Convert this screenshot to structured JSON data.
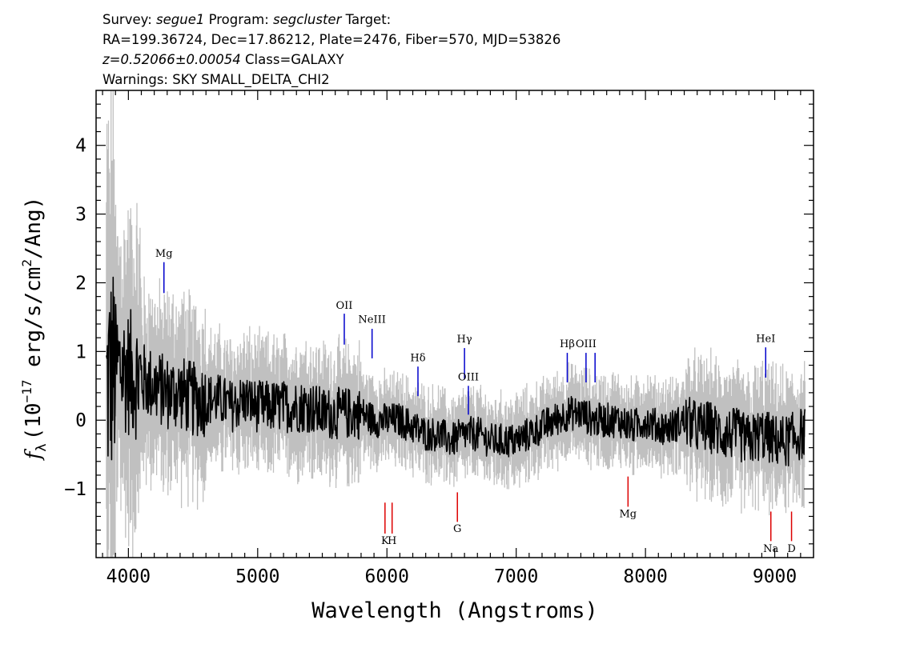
{
  "header": {
    "survey_label": "Survey:",
    "survey_value": "segue1",
    "program_label": "Program:",
    "program_value": "segcluster",
    "target_label": "Target:",
    "line2": "RA=199.36724, Dec=17.86212, Plate=2476, Fiber=570, MJD=53826",
    "z_value": "z=0.52066±0.00054",
    "class_text": "Class=GALAXY",
    "warnings": "Warnings: SKY SMALL_DELTA_CHI2"
  },
  "colors": {
    "flux": "#000000",
    "error": "#c0c0c0",
    "emission_line": "#0000cc",
    "absorption_line": "#dd0000"
  },
  "chart_data": {
    "type": "line",
    "xlabel": "Wavelength (Angstroms)",
    "ylabel": "f_λ (10^-17 erg/s/cm^2/Ang)",
    "ylabel_parts": {
      "f": "f",
      "lambda": "λ",
      "open": "(10",
      "exp": "−17",
      "mid": " erg/s/cm",
      "sq": "2",
      "close": "/Ang)"
    },
    "xlim": [
      3750,
      9300
    ],
    "ylim": [
      -2.0,
      4.8
    ],
    "x_ticks": [
      4000,
      5000,
      6000,
      7000,
      8000,
      9000
    ],
    "x_tick_labels": [
      "4000",
      "5000",
      "6000",
      "7000",
      "8000",
      "9000"
    ],
    "y_ticks": [
      -1,
      0,
      1,
      2,
      3,
      4
    ],
    "y_tick_labels": [
      "−1",
      "0",
      "1",
      "2",
      "3",
      "4"
    ],
    "grid": false,
    "series": [
      {
        "x": [
          3800,
          3850,
          3900,
          4000,
          4100,
          4200,
          4300,
          4400,
          4500,
          4600,
          4700,
          4800,
          4900,
          5000,
          5100,
          5200,
          5300,
          5400,
          5500,
          5600,
          5700,
          5800,
          5900,
          6000,
          6100,
          6200,
          6300,
          6400,
          6500,
          6600,
          6700,
          6800,
          6900,
          7000,
          7100,
          7200,
          7300,
          7400,
          7500,
          7600,
          7700,
          7800,
          7900,
          8000,
          8100,
          8200,
          8300,
          8400,
          8500,
          8600,
          8700,
          8800,
          8900,
          9000,
          9100,
          9200
        ],
        "y": [
          0.2,
          0.6,
          0.8,
          0.7,
          0.6,
          0.5,
          0.4,
          0.4,
          0.3,
          0.3,
          0.3,
          0.2,
          0.3,
          0.2,
          0.2,
          0.2,
          0.2,
          0.2,
          0.1,
          0.1,
          0.1,
          0.1,
          0.0,
          0.0,
          0.0,
          -0.1,
          -0.2,
          -0.2,
          -0.3,
          -0.2,
          -0.2,
          -0.3,
          -0.3,
          -0.3,
          -0.2,
          -0.1,
          0.0,
          0.1,
          0.1,
          0.0,
          0.0,
          0.0,
          -0.1,
          0.0,
          -0.1,
          -0.1,
          0.0,
          -0.1,
          -0.1,
          -0.2,
          -0.2,
          -0.3,
          -0.2,
          -0.3,
          -0.3,
          -0.2
        ]
      }
    ],
    "lines": [
      {
        "label": "Mg",
        "x": 4275,
        "y1": 1.85,
        "y2": 2.3,
        "ly": 2.38,
        "kind": "emission"
      },
      {
        "label": "OII",
        "x": 5670,
        "y1": 1.1,
        "y2": 1.55,
        "ly": 1.62,
        "kind": "emission"
      },
      {
        "label": "NeIII",
        "x": 5885,
        "y1": 0.9,
        "y2": 1.33,
        "ly": 1.42,
        "kind": "emission"
      },
      {
        "label": "Hδ",
        "x": 6240,
        "y1": 0.35,
        "y2": 0.78,
        "ly": 0.86,
        "kind": "emission"
      },
      {
        "label": "Hγ",
        "x": 6600,
        "y1": 0.6,
        "y2": 1.05,
        "ly": 1.13,
        "kind": "emission"
      },
      {
        "label": "OIII",
        "x": 6630,
        "y1": 0.08,
        "y2": 0.5,
        "ly": 0.58,
        "kind": "emission"
      },
      {
        "label": "Hβ",
        "x": 7395,
        "y1": 0.55,
        "y2": 0.98,
        "ly": 1.06,
        "kind": "emission"
      },
      {
        "label": "OIII",
        "x": 7540,
        "y1": 0.55,
        "y2": 0.98,
        "ly": 1.06,
        "kind": "emission"
      },
      {
        "label": "",
        "x": 7610,
        "y1": 0.55,
        "y2": 0.98,
        "ly": 1.06,
        "kind": "emission"
      },
      {
        "label": "HeI",
        "x": 8930,
        "y1": 0.62,
        "y2": 1.06,
        "ly": 1.14,
        "kind": "emission"
      },
      {
        "label": "K",
        "x": 5985,
        "y1": -1.2,
        "y2": -1.65,
        "ly": -1.8,
        "kind": "absorption"
      },
      {
        "label": "H",
        "x": 6040,
        "y1": -1.2,
        "y2": -1.65,
        "ly": -1.8,
        "kind": "absorption"
      },
      {
        "label": "G",
        "x": 6545,
        "y1": -1.05,
        "y2": -1.48,
        "ly": -1.63,
        "kind": "absorption"
      },
      {
        "label": "Mg",
        "x": 7865,
        "y1": -0.82,
        "y2": -1.26,
        "ly": -1.41,
        "kind": "absorption"
      },
      {
        "label": "Na",
        "x": 8970,
        "y1": -1.33,
        "y2": -1.76,
        "ly": -1.92,
        "kind": "absorption"
      },
      {
        "label": "D",
        "x": 9130,
        "y1": -1.33,
        "y2": -1.76,
        "ly": -1.92,
        "kind": "absorption"
      }
    ]
  }
}
